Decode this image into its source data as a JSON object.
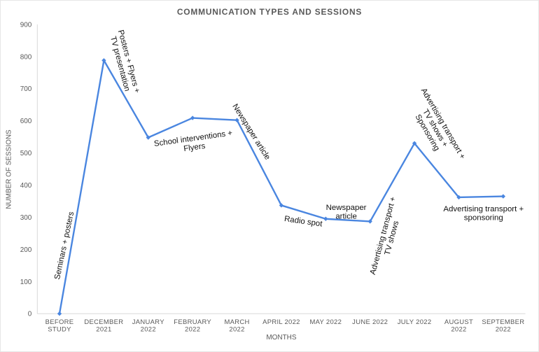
{
  "chart_data": {
    "type": "line",
    "title": "COMMUNICATION TYPES AND SESSIONS",
    "xlabel": "MONTHS",
    "ylabel": "NUMBER OF SESSIONS",
    "ylim": [
      0,
      900
    ],
    "yticks": [
      0,
      100,
      200,
      300,
      400,
      500,
      600,
      700,
      800,
      900
    ],
    "grid": false,
    "categories": [
      [
        "BEFORE",
        "STUDY"
      ],
      [
        "DECEMBER",
        "2021"
      ],
      [
        "JANUARY",
        "2022"
      ],
      [
        "FEBRUARY",
        "2022"
      ],
      [
        "MARCH",
        "2022"
      ],
      [
        "APRIL 2022"
      ],
      [
        "MAY 2022"
      ],
      [
        "JUNE 2022"
      ],
      [
        "JULY 2022"
      ],
      [
        "AUGUST",
        "2022"
      ],
      [
        "SEPTEMBER",
        "2022"
      ]
    ],
    "series": [
      {
        "values": [
          0,
          788,
          548,
          609,
          602,
          337,
          295,
          287,
          530,
          362,
          365
        ],
        "color": "#4a86e0"
      }
    ],
    "annotations": [
      {
        "lines": [
          "Seminars + posters"
        ]
      },
      {
        "lines": [
          "Posters + Flyers +",
          "TV presentation"
        ]
      },
      {
        "lines": [
          "School interventions +",
          "Flyers"
        ]
      },
      {
        "lines": [
          "Newspaper article"
        ]
      },
      {
        "lines": [
          "Radio spot"
        ]
      },
      {
        "lines": [
          "Newspaper",
          "article"
        ]
      },
      {
        "lines": [
          "Advertising transport +",
          "TV shows"
        ]
      },
      {
        "lines": [
          "Advertising transport +",
          "TV shows +",
          "Sponsoring"
        ]
      },
      {
        "lines": [
          "Advertising transport +",
          "sponsoring"
        ]
      }
    ]
  }
}
